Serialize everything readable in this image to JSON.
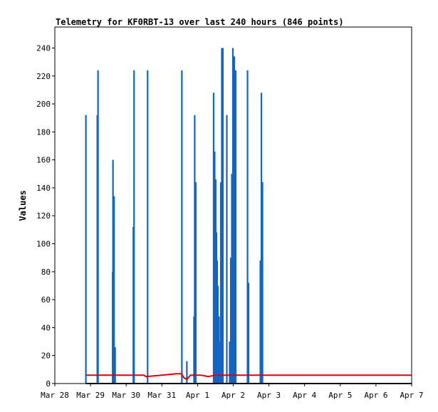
{
  "chart_data": {
    "type": "line",
    "title": "Telemetry for KF0RBT-13 over last 240 hours (846 points)",
    "xlabel": "",
    "ylabel": "Values",
    "x_ticks": [
      "Mar 28",
      "Mar 29",
      "Mar 30",
      "Mar 31",
      "Apr 1",
      "Apr 2",
      "Apr 3",
      "Apr 4",
      "Apr 5",
      "Apr 6",
      "Apr 7"
    ],
    "y_ticks": [
      0,
      20,
      40,
      60,
      80,
      100,
      120,
      140,
      160,
      180,
      200,
      220,
      240
    ],
    "xlim_days": [
      0,
      10
    ],
    "ylim": [
      0,
      255
    ],
    "grid": false,
    "colors": {
      "series_blue": "#1565c0",
      "series_red": "#dd0000",
      "series_black": "#000000"
    },
    "series": [
      {
        "color": "#1565c0",
        "spikes": [
          [
            0.87,
            192
          ],
          [
            1.19,
            192
          ],
          [
            1.21,
            224
          ],
          [
            1.62,
            80
          ],
          [
            1.63,
            160
          ],
          [
            1.66,
            134
          ],
          [
            1.69,
            26
          ],
          [
            2.2,
            112
          ],
          [
            2.22,
            224
          ],
          [
            2.6,
            224
          ],
          [
            3.56,
            224
          ],
          [
            3.7,
            16
          ],
          [
            3.9,
            48
          ],
          [
            3.92,
            192
          ],
          [
            3.95,
            144
          ],
          [
            4.45,
            208
          ],
          [
            4.48,
            166
          ],
          [
            4.51,
            146
          ],
          [
            4.53,
            108
          ],
          [
            4.55,
            88
          ],
          [
            4.57,
            70
          ],
          [
            4.6,
            48
          ],
          [
            4.62,
            30
          ],
          [
            4.65,
            144
          ],
          [
            4.68,
            240
          ],
          [
            4.71,
            240
          ],
          [
            4.82,
            192
          ],
          [
            4.9,
            30
          ],
          [
            4.93,
            90
          ],
          [
            4.96,
            150
          ],
          [
            4.99,
            240
          ],
          [
            5.01,
            210
          ],
          [
            5.03,
            234
          ],
          [
            5.05,
            198
          ],
          [
            5.07,
            224
          ],
          [
            5.4,
            224
          ],
          [
            5.43,
            72
          ],
          [
            5.76,
            88
          ],
          [
            5.79,
            208
          ],
          [
            5.82,
            144
          ]
        ]
      },
      {
        "color": "#dd0000",
        "points": [
          [
            0.87,
            6
          ],
          [
            2.5,
            6
          ],
          [
            2.55,
            5
          ],
          [
            3.0,
            6
          ],
          [
            3.4,
            7
          ],
          [
            3.55,
            7
          ],
          [
            3.62,
            4
          ],
          [
            3.7,
            3
          ],
          [
            3.8,
            6
          ],
          [
            4.1,
            6
          ],
          [
            4.3,
            5
          ],
          [
            4.5,
            6
          ],
          [
            5.5,
            6
          ],
          [
            10,
            6
          ]
        ]
      },
      {
        "color": "#000000",
        "points": [
          [
            0.87,
            0
          ],
          [
            10,
            0
          ]
        ]
      }
    ]
  }
}
